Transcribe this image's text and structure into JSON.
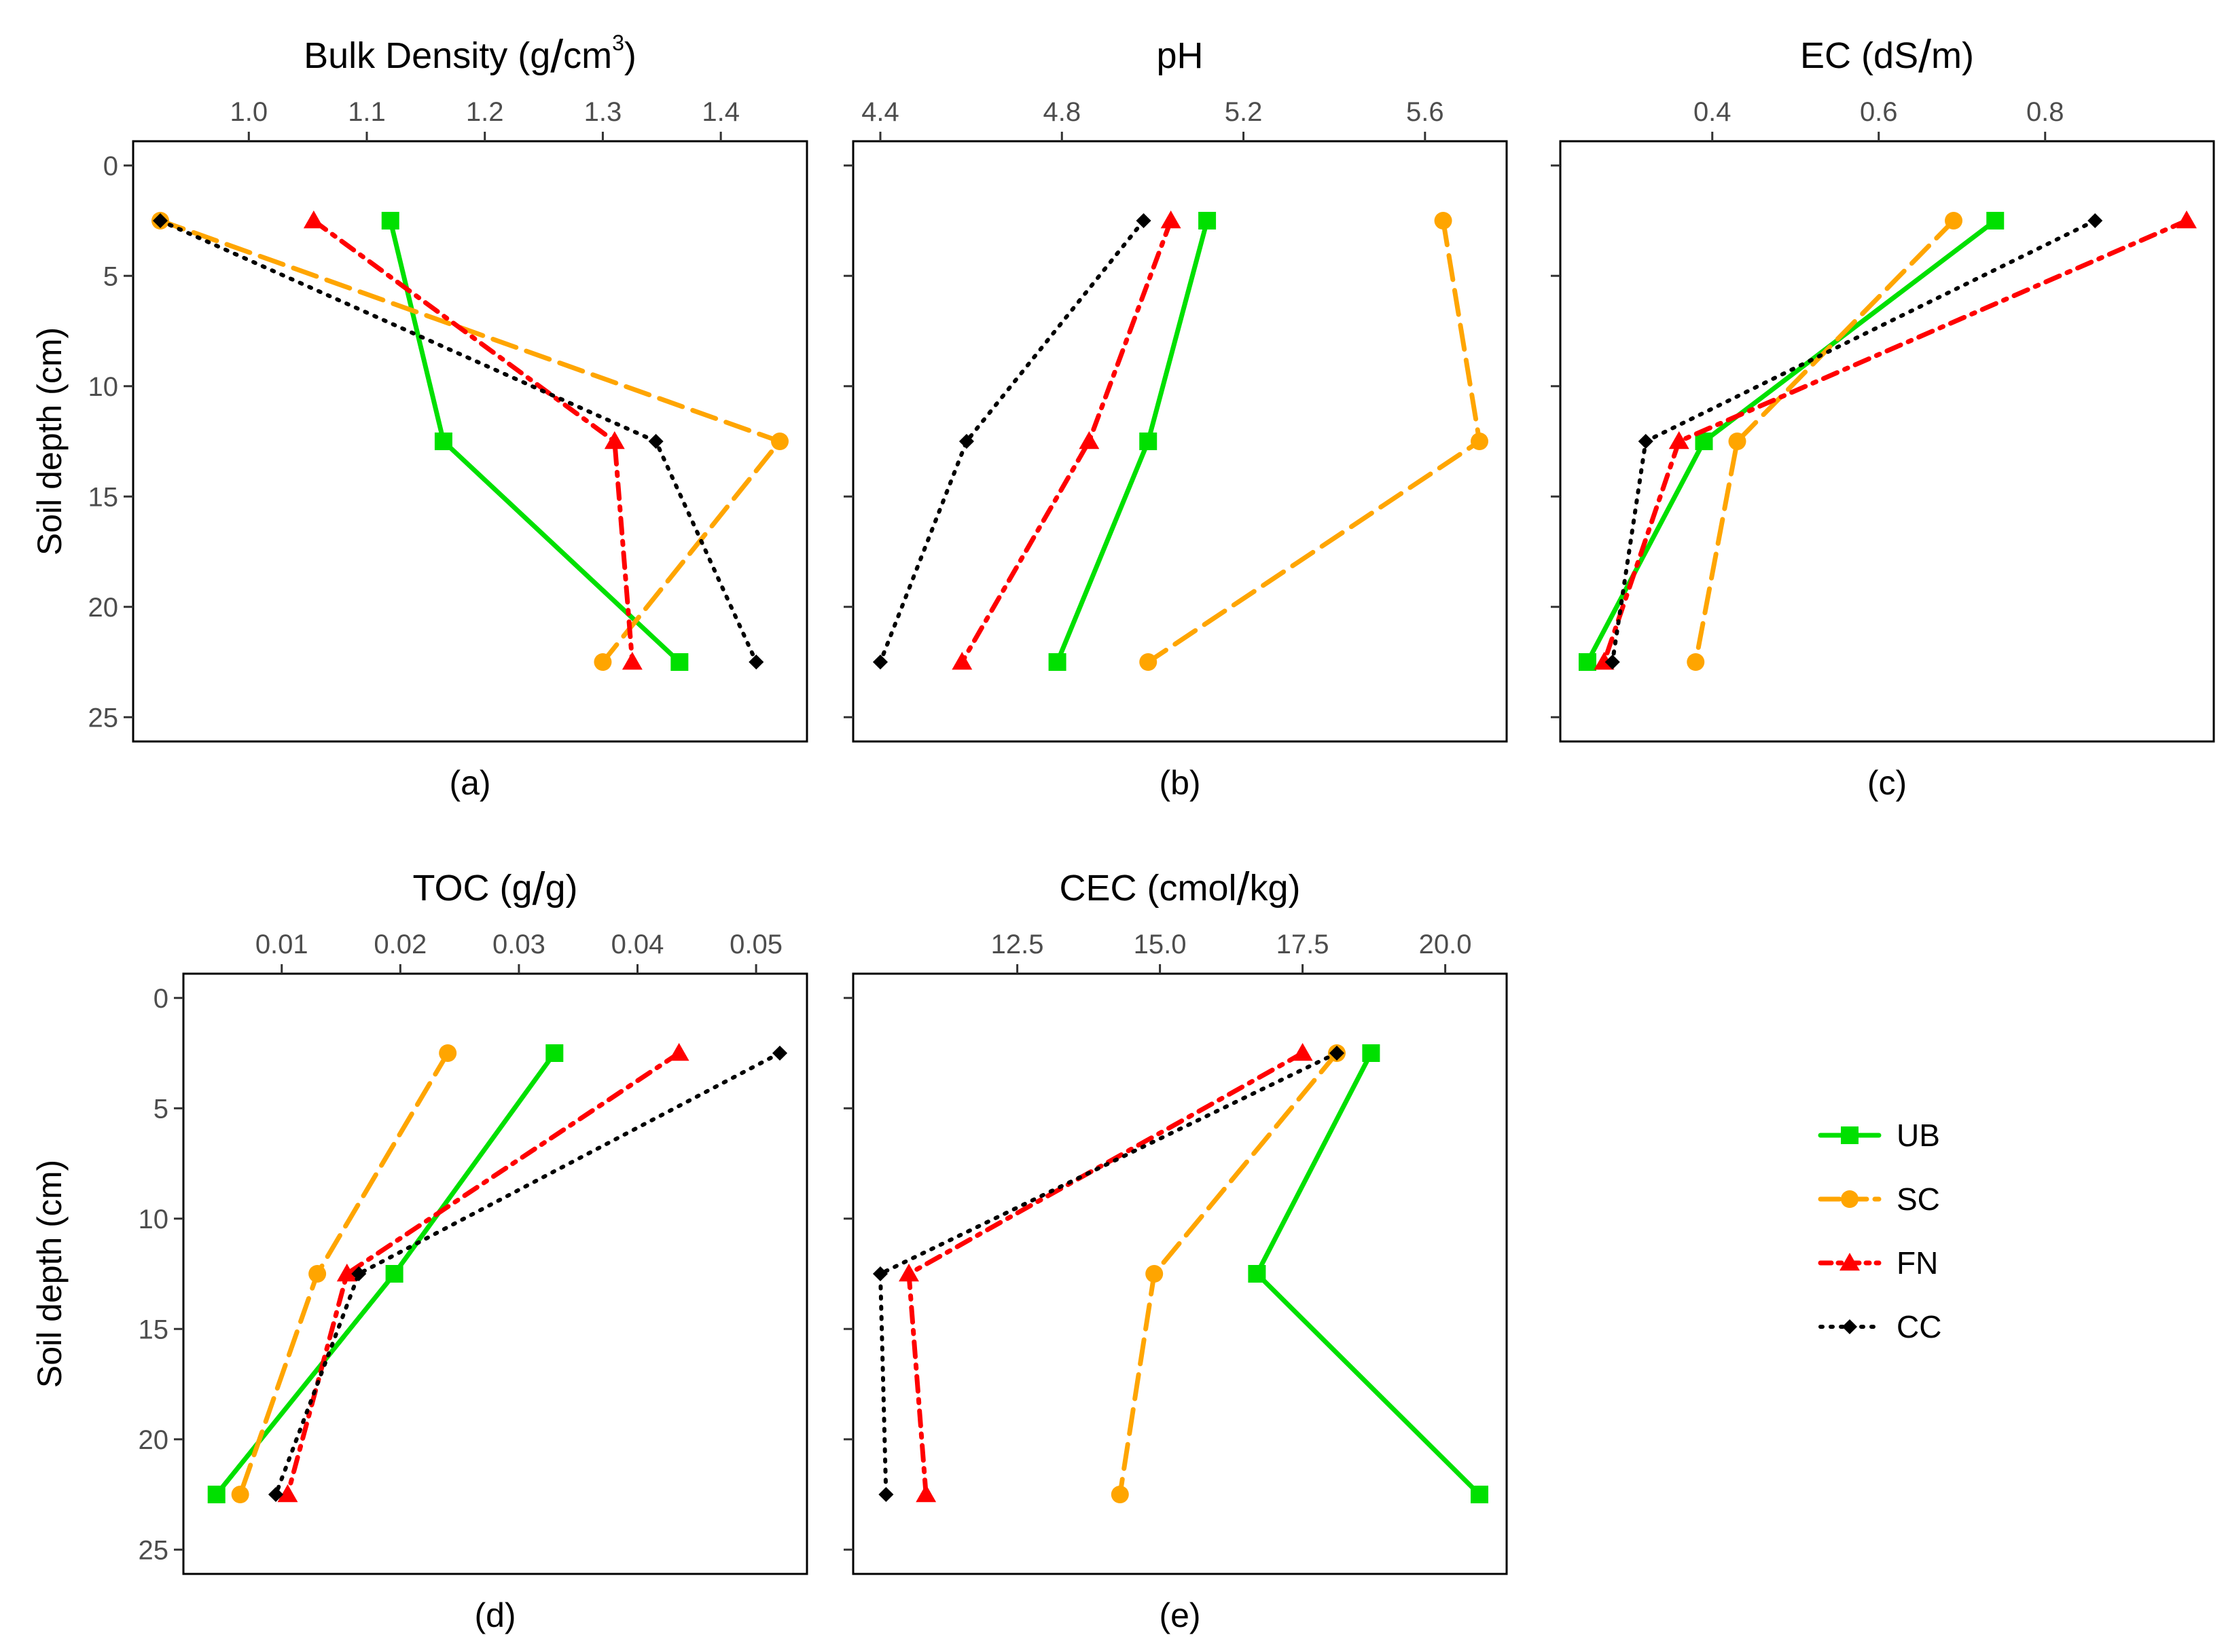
{
  "chart_data": [
    {
      "type": "line",
      "panel_label": "(a)",
      "title": "Bulk Density (g/cm³)",
      "title_parts": {
        "before": "Bulk Density (g",
        "slash": "/",
        "after_base": "cm",
        "superscript": "3",
        "close": ")"
      },
      "xlabel": "Bulk Density (g/cm³)",
      "ylabel": "Soil depth (cm)",
      "xlim": [
        0.925,
        1.45
      ],
      "x_ticks": [
        1.0,
        1.1,
        1.2,
        1.3,
        1.4
      ],
      "x_tick_labels": [
        "1.0",
        "1.1",
        "1.2",
        "1.3",
        "1.4"
      ],
      "ylim": [
        0,
        26
      ],
      "y_ticks": [
        0,
        5,
        10,
        15,
        20,
        25
      ],
      "y_tick_labels": [
        "0",
        "5",
        "10",
        "15",
        "20",
        "25"
      ],
      "depths": [
        2.5,
        12.5,
        22.5
      ],
      "series": [
        {
          "name": "UB",
          "values": [
            1.12,
            1.165,
            1.365
          ]
        },
        {
          "name": "SC",
          "values": [
            0.925,
            1.45,
            1.3
          ]
        },
        {
          "name": "FN",
          "values": [
            1.055,
            1.31,
            1.325
          ]
        },
        {
          "name": "CC",
          "values": [
            0.925,
            1.345,
            1.43
          ]
        }
      ]
    },
    {
      "type": "line",
      "panel_label": "(b)",
      "title": "pH",
      "xlabel": "pH",
      "ylabel": "",
      "xlim": [
        4.4,
        5.72
      ],
      "x_ticks": [
        4.4,
        4.8,
        5.2,
        5.6
      ],
      "x_tick_labels": [
        "4.4",
        "4.8",
        "5.2",
        "5.6"
      ],
      "ylim": [
        0,
        26
      ],
      "y_ticks": [
        0,
        5,
        10,
        15,
        20,
        25
      ],
      "depths": [
        2.5,
        12.5,
        22.5
      ],
      "series": [
        {
          "name": "UB",
          "values": [
            5.12,
            4.99,
            4.79
          ]
        },
        {
          "name": "SC",
          "values": [
            5.64,
            5.72,
            4.99
          ]
        },
        {
          "name": "FN",
          "values": [
            5.04,
            4.86,
            4.58
          ]
        },
        {
          "name": "CC",
          "values": [
            4.98,
            4.59,
            4.4
          ]
        }
      ]
    },
    {
      "type": "line",
      "panel_label": "(c)",
      "title": "EC (dS/m)",
      "title_parts": {
        "before": "EC (dS",
        "slash": "/",
        "after": "m)"
      },
      "xlabel": "EC (dS/m)",
      "ylabel": "",
      "xlim": [
        0.25,
        0.97
      ],
      "x_ticks": [
        0.4,
        0.6,
        0.8
      ],
      "x_tick_labels": [
        "0.4",
        "0.6",
        "0.8"
      ],
      "ylim": [
        0,
        26
      ],
      "y_ticks": [
        0,
        5,
        10,
        15,
        20,
        25
      ],
      "depths": [
        2.5,
        12.5,
        22.5
      ],
      "series": [
        {
          "name": "UB",
          "values": [
            0.74,
            0.39,
            0.25
          ]
        },
        {
          "name": "SC",
          "values": [
            0.69,
            0.43,
            0.38
          ]
        },
        {
          "name": "FN",
          "values": [
            0.97,
            0.36,
            0.27
          ]
        },
        {
          "name": "CC",
          "values": [
            0.86,
            0.32,
            0.28
          ]
        }
      ]
    },
    {
      "type": "line",
      "panel_label": "(d)",
      "title": "TOC (g/g)",
      "title_parts": {
        "before": "TOC (g",
        "slash": "/",
        "after": "g)"
      },
      "xlabel": "TOC (g/g)",
      "ylabel": "Soil depth (cm)",
      "xlim": [
        0.004,
        0.052
      ],
      "x_ticks": [
        0.01,
        0.02,
        0.03,
        0.04,
        0.05
      ],
      "x_tick_labels": [
        "0.01",
        "0.02",
        "0.03",
        "0.04",
        "0.05"
      ],
      "ylim": [
        0,
        26
      ],
      "y_ticks": [
        0,
        5,
        10,
        15,
        20,
        25
      ],
      "y_tick_labels": [
        "0",
        "5",
        "10",
        "15",
        "20",
        "25"
      ],
      "depths": [
        2.5,
        12.5,
        22.5
      ],
      "series": [
        {
          "name": "UB",
          "values": [
            0.033,
            0.0195,
            0.0045
          ]
        },
        {
          "name": "SC",
          "values": [
            0.024,
            0.013,
            0.0065
          ]
        },
        {
          "name": "FN",
          "values": [
            0.0435,
            0.0155,
            0.0105
          ]
        },
        {
          "name": "CC",
          "values": [
            0.052,
            0.0165,
            0.0095
          ]
        }
      ]
    },
    {
      "type": "line",
      "panel_label": "(e)",
      "title": "CEC (cmol/kg)",
      "title_parts": {
        "before": "CEC (cmol",
        "slash": "/",
        "after": "kg)"
      },
      "xlabel": "CEC (cmol/kg)",
      "ylabel": "",
      "xlim": [
        10.1,
        20.6
      ],
      "x_ticks": [
        12.5,
        15.0,
        17.5,
        20.0
      ],
      "x_tick_labels": [
        "12.5",
        "15.0",
        "17.5",
        "20.0"
      ],
      "ylim": [
        0,
        26
      ],
      "y_ticks": [
        0,
        5,
        10,
        15,
        20,
        25
      ],
      "depths": [
        2.5,
        12.5,
        22.5
      ],
      "series": [
        {
          "name": "UB",
          "values": [
            18.7,
            16.7,
            20.6
          ]
        },
        {
          "name": "SC",
          "values": [
            18.1,
            14.9,
            14.3
          ]
        },
        {
          "name": "FN",
          "values": [
            17.5,
            10.6,
            10.9
          ]
        },
        {
          "name": "CC",
          "values": [
            18.1,
            10.1,
            10.2
          ]
        }
      ]
    }
  ],
  "legend": {
    "position": "right",
    "items": [
      {
        "name": "UB",
        "color": "#00e000",
        "marker": "square",
        "dash": "solid"
      },
      {
        "name": "SC",
        "color": "#ffa500",
        "marker": "circle",
        "dash": "long-dash"
      },
      {
        "name": "FN",
        "color": "#ff0000",
        "marker": "triangle",
        "dash": "dash-dot"
      },
      {
        "name": "CC",
        "color": "#000000",
        "marker": "diamond",
        "dash": "dotted"
      }
    ]
  }
}
